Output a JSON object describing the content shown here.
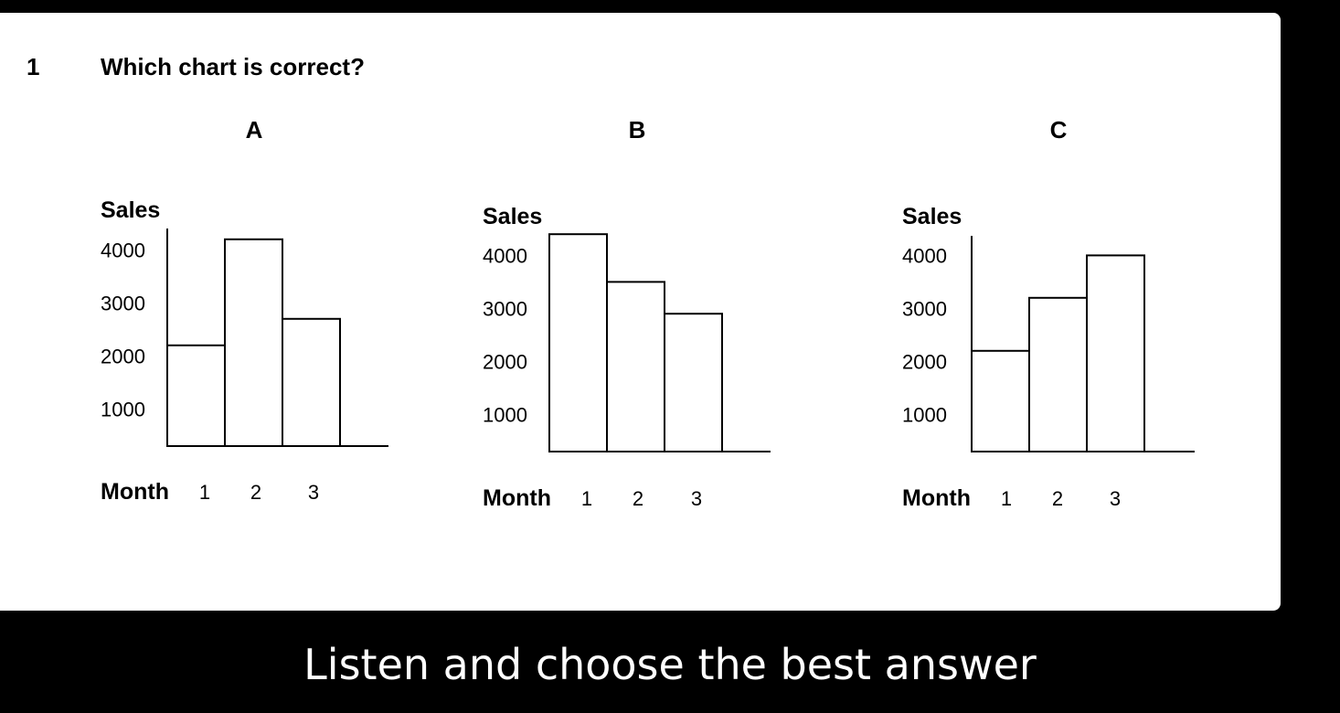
{
  "question": {
    "number": "1",
    "text": "Which chart is correct?"
  },
  "caption": "Listen and choose the best answer",
  "chart_data": [
    {
      "type": "bar",
      "title": "A",
      "ylabel": "Sales",
      "xlabel": "Month",
      "categories": [
        "1",
        "2",
        "3"
      ],
      "values": [
        2200,
        4200,
        2700
      ],
      "yticks": [
        "1000",
        "2000",
        "3000",
        "4000"
      ],
      "ylim": [
        300,
        4600
      ]
    },
    {
      "type": "bar",
      "title": "B",
      "ylabel": "Sales",
      "xlabel": "Month",
      "categories": [
        "1",
        "2",
        "3"
      ],
      "values": [
        4400,
        3500,
        2900
      ],
      "yticks": [
        "1000",
        "2000",
        "3000",
        "4000"
      ],
      "ylim": [
        300,
        4600
      ]
    },
    {
      "type": "bar",
      "title": "C",
      "ylabel": "Sales",
      "xlabel": "Month",
      "categories": [
        "1",
        "2",
        "3"
      ],
      "values": [
        2200,
        3200,
        4000
      ],
      "yticks": [
        "1000",
        "2000",
        "3000",
        "4000"
      ],
      "ylim": [
        300,
        4600
      ]
    }
  ]
}
